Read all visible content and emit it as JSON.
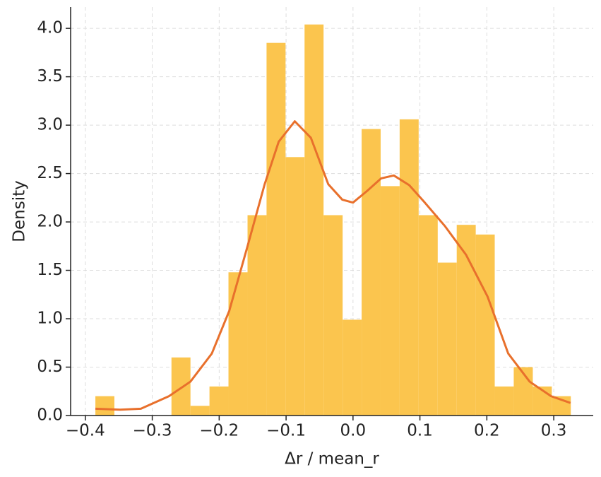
{
  "chart_data": {
    "type": "histogram",
    "xlabel": "Δr / mean_r",
    "ylabel": "Density",
    "bins": [
      -0.385,
      -0.3566,
      -0.3282,
      -0.2997,
      -0.2713,
      -0.2429,
      -0.2145,
      -0.1861,
      -0.1576,
      -0.1292,
      -0.1008,
      -0.0724,
      -0.044,
      -0.0155,
      0.0129,
      0.0413,
      0.0697,
      0.0981,
      0.1266,
      0.155,
      0.1834,
      0.2118,
      0.2402,
      0.2687,
      0.2971,
      0.3255
    ],
    "values": [
      0.2,
      0,
      0,
      0,
      0.6,
      0.1,
      0.3,
      1.48,
      2.07,
      3.85,
      2.67,
      4.04,
      2.07,
      0.99,
      2.96,
      2.37,
      3.06,
      2.07,
      1.58,
      1.97,
      1.87,
      0.3,
      0.5,
      0.3,
      0.2
    ],
    "color": "#fbc54e",
    "kde": {
      "color": "#e8702c",
      "x": [
        -0.385,
        -0.348,
        -0.317,
        -0.275,
        -0.243,
        -0.211,
        -0.185,
        -0.158,
        -0.132,
        -0.111,
        -0.087,
        -0.063,
        -0.037,
        -0.016,
        0,
        0.021,
        0.042,
        0.061,
        0.084,
        0.106,
        0.137,
        0.169,
        0.201,
        0.232,
        0.264,
        0.296,
        0.325
      ],
      "values": [
        0.07,
        0.06,
        0.07,
        0.2,
        0.35,
        0.64,
        1.08,
        1.74,
        2.39,
        2.83,
        3.04,
        2.87,
        2.39,
        2.23,
        2.2,
        2.32,
        2.45,
        2.48,
        2.38,
        2.21,
        1.96,
        1.66,
        1.23,
        0.64,
        0.35,
        0.2,
        0.13
      ]
    },
    "xlim": [
      -0.422,
      0.359
    ],
    "ylim": [
      0,
      4.22
    ],
    "xticks": [
      {
        "value": -0.4,
        "label": "−0.4"
      },
      {
        "value": -0.3,
        "label": "−0.3"
      },
      {
        "value": -0.2,
        "label": "−0.2"
      },
      {
        "value": -0.1,
        "label": "−0.1"
      },
      {
        "value": 0,
        "label": "0.0"
      },
      0.1,
      0.2,
      0.3
    ],
    "yticks": [
      {
        "value": 0,
        "label": "0.0"
      },
      0.5,
      {
        "value": 1,
        "label": "1.0"
      },
      1.5,
      {
        "value": 2,
        "label": "2.0"
      },
      2.5,
      {
        "value": 3,
        "label": "3.0"
      },
      3.5,
      {
        "value": 4,
        "label": "4.0"
      }
    ],
    "grid": true
  }
}
